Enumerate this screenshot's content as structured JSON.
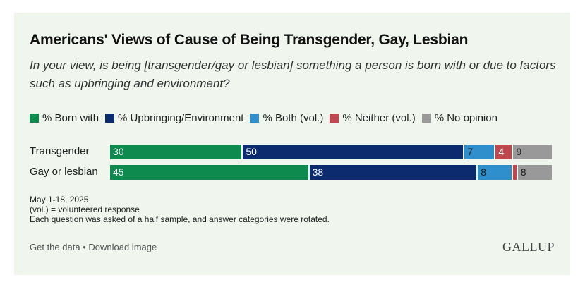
{
  "card": {
    "title": "Americans' Views of Cause of Being Transgender, Gay, Lesbian",
    "subtitle": "In your view, is being [transgender/gay or lesbian] something a person is born with or due to factors such as upbringing and environment?",
    "notes": [
      "May 1-18, 2025",
      "(vol.) = volunteered response",
      "Each question was asked of a half sample, and answer categories were rotated."
    ],
    "footer": {
      "get_data": "Get the data",
      "separator": "•",
      "download": "Download image"
    },
    "logo": "GALLUP"
  },
  "chart_data": {
    "type": "bar",
    "orientation": "horizontal",
    "stacked": true,
    "title": "Americans' Views of Cause of Being Transgender, Gay, Lesbian",
    "categories": [
      "Transgender",
      "Gay or lesbian"
    ],
    "legend_position": "top-left",
    "series": [
      {
        "name": "% Born with",
        "color": "#0e8a4e",
        "text_color": "#ffffff",
        "values": [
          30,
          45
        ],
        "labels": [
          "30",
          "45"
        ]
      },
      {
        "name": "% Upbringing/Environment",
        "color": "#0c2a6e",
        "text_color": "#ffffff",
        "values": [
          50,
          38
        ],
        "labels": [
          "50",
          "38"
        ]
      },
      {
        "name": "% Both (vol.)",
        "color": "#2f8fcc",
        "text_color": "#1a1a1a",
        "values": [
          7,
          8
        ],
        "labels": [
          "7",
          "8"
        ]
      },
      {
        "name": "% Neither (vol.)",
        "color": "#c1474f",
        "text_color": "#ffffff",
        "values": [
          4,
          1
        ],
        "labels": [
          "4",
          ""
        ]
      },
      {
        "name": "% No opinion",
        "color": "#999999",
        "text_color": "#1a1a1a",
        "values": [
          9,
          8
        ],
        "labels": [
          "9",
          "8"
        ]
      }
    ],
    "xlim": [
      0,
      100
    ]
  }
}
